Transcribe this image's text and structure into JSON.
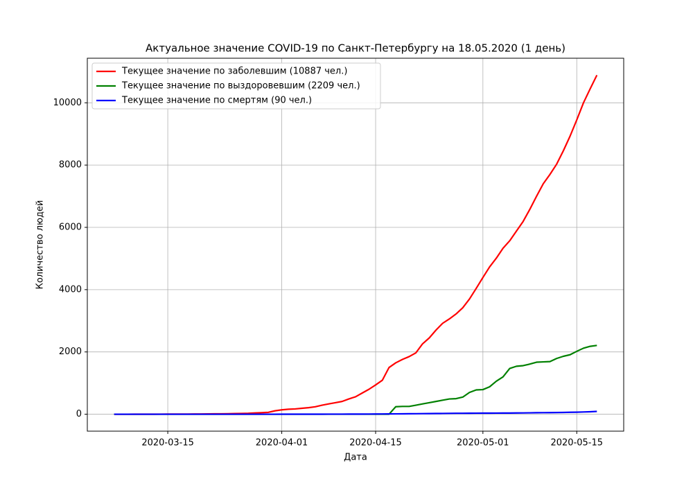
{
  "chart_data": {
    "type": "line",
    "title": "Актуальное значение COVID-19 по Санкт-Петербургу на 18.05.2020 (1 день)",
    "x_label": "Дата",
    "y_label": "Количество людей",
    "x": [
      "2020-03-07",
      "2020-03-08",
      "2020-03-09",
      "2020-03-10",
      "2020-03-11",
      "2020-03-12",
      "2020-03-13",
      "2020-03-14",
      "2020-03-15",
      "2020-03-16",
      "2020-03-17",
      "2020-03-18",
      "2020-03-19",
      "2020-03-20",
      "2020-03-21",
      "2020-03-22",
      "2020-03-23",
      "2020-03-24",
      "2020-03-25",
      "2020-03-26",
      "2020-03-27",
      "2020-03-28",
      "2020-03-29",
      "2020-03-30",
      "2020-03-31",
      "2020-04-01",
      "2020-04-02",
      "2020-04-03",
      "2020-04-04",
      "2020-04-05",
      "2020-04-06",
      "2020-04-07",
      "2020-04-08",
      "2020-04-09",
      "2020-04-10",
      "2020-04-11",
      "2020-04-12",
      "2020-04-13",
      "2020-04-14",
      "2020-04-15",
      "2020-04-16",
      "2020-04-17",
      "2020-04-18",
      "2020-04-19",
      "2020-04-20",
      "2020-04-21",
      "2020-04-22",
      "2020-04-23",
      "2020-04-24",
      "2020-04-25",
      "2020-04-26",
      "2020-04-27",
      "2020-04-28",
      "2020-04-29",
      "2020-04-30",
      "2020-05-01",
      "2020-05-02",
      "2020-05-03",
      "2020-05-04",
      "2020-05-05",
      "2020-05-06",
      "2020-05-07",
      "2020-05-08",
      "2020-05-09",
      "2020-05-10",
      "2020-05-11",
      "2020-05-12",
      "2020-05-13",
      "2020-05-14",
      "2020-05-15",
      "2020-05-16",
      "2020-05-17",
      "2020-05-18"
    ],
    "series": [
      {
        "name": "Текущее значение по заболевшим (10887 чел.)",
        "color": "#ff0000",
        "values": [
          0,
          0,
          0,
          1,
          1,
          1,
          2,
          3,
          4,
          5,
          6,
          6,
          7,
          8,
          10,
          12,
          14,
          17,
          20,
          25,
          30,
          40,
          50,
          60,
          110,
          140,
          160,
          170,
          190,
          210,
          240,
          290,
          330,
          370,
          410,
          490,
          560,
          680,
          800,
          940,
          1090,
          1500,
          1650,
          1760,
          1850,
          1970,
          2260,
          2450,
          2700,
          2920,
          3060,
          3220,
          3420,
          3700,
          4040,
          4390,
          4730,
          5010,
          5330,
          5570,
          5880,
          6190,
          6580,
          7000,
          7400,
          7700,
          8030,
          8460,
          8930,
          9450,
          10000,
          10450,
          10887
        ]
      },
      {
        "name": "Текущее значение по выздоровевшим (2209 чел.)",
        "color": "#008000",
        "values": [
          0,
          0,
          0,
          0,
          0,
          0,
          0,
          0,
          0,
          0,
          0,
          0,
          0,
          0,
          0,
          0,
          0,
          0,
          0,
          0,
          0,
          0,
          0,
          0,
          0,
          0,
          0,
          0,
          0,
          0,
          0,
          0,
          0,
          0,
          0,
          0,
          0,
          0,
          0,
          0,
          0,
          0,
          240,
          250,
          250,
          290,
          330,
          370,
          410,
          450,
          490,
          500,
          550,
          700,
          780,
          790,
          880,
          1060,
          1200,
          1470,
          1540,
          1560,
          1610,
          1670,
          1680,
          1690,
          1790,
          1860,
          1910,
          2020,
          2120,
          2180,
          2209
        ]
      },
      {
        "name": "Текущее значение по смертям (90 чел.)",
        "color": "#0000ff",
        "values": [
          0,
          0,
          0,
          0,
          0,
          0,
          0,
          0,
          0,
          0,
          0,
          0,
          0,
          0,
          0,
          0,
          0,
          0,
          0,
          0,
          0,
          0,
          0,
          0,
          0,
          1,
          1,
          1,
          1,
          1,
          2,
          2,
          3,
          3,
          3,
          4,
          5,
          5,
          6,
          7,
          8,
          9,
          11,
          13,
          15,
          17,
          19,
          21,
          23,
          25,
          28,
          30,
          31,
          32,
          33,
          34,
          35,
          36,
          37,
          38,
          40,
          42,
          45,
          48,
          50,
          52,
          54,
          57,
          62,
          66,
          72,
          80,
          90
        ]
      }
    ],
    "xlim": [
      "2020-03-03",
      "2020-05-22"
    ],
    "xticks": [
      "2020-03-15",
      "2020-04-01",
      "2020-04-15",
      "2020-05-01",
      "2020-05-15"
    ],
    "ylim": [
      -544,
      11431
    ],
    "yticks": [
      0,
      2000,
      4000,
      6000,
      8000,
      10000
    ],
    "grid": true,
    "legend": "upper left"
  }
}
